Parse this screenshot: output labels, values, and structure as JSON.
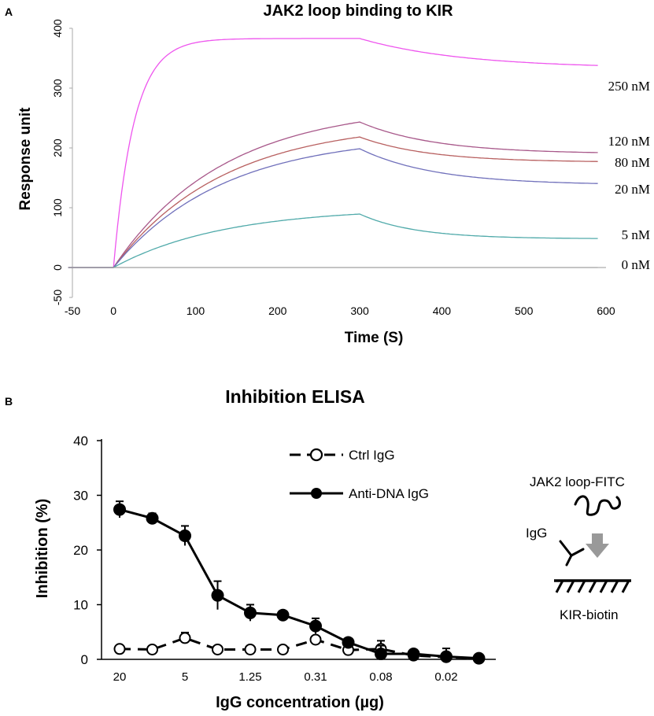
{
  "panel_a": {
    "letter": "A",
    "colors": {
      "250 nM": "#ee55ee",
      "120 nM": "#a8588a",
      "80 nM": "#b86060",
      "20 nM": "#7070bb",
      "5 nM": "#50aaaa",
      "0 nM": "#a0a0a0"
    }
  },
  "panel_b": {
    "letter": "B",
    "diagram": {
      "jak2": "JAK2 loop-FITC",
      "igg": "IgG",
      "kir": "KIR-biotin"
    }
  },
  "chart_data": [
    {
      "type": "line",
      "title": "JAK2 loop binding to KIR",
      "xlabel": "Time (S)",
      "ylabel": "Response unit",
      "xlim": [
        -50,
        600
      ],
      "ylim": [
        -50,
        400
      ],
      "xticks": [
        "-50",
        "0",
        "100",
        "200",
        "300",
        "400",
        "500",
        "600"
      ],
      "yticks": [
        "-50",
        "0",
        "100",
        "200",
        "300",
        "400"
      ],
      "association_end": 300,
      "series": [
        {
          "name": "250 nM",
          "plateau": 383,
          "end": 333,
          "koff": 0.008
        },
        {
          "name": "120 nM",
          "plateau": 272,
          "end": 190,
          "koff": 0.011
        },
        {
          "name": "80 nM",
          "plateau": 244,
          "end": 176,
          "koff": 0.012
        },
        {
          "name": "20 nM",
          "plateau": 222,
          "end": 138,
          "koff": 0.011
        },
        {
          "name": "5 nM",
          "plateau": 100,
          "end": 48,
          "koff": 0.015
        },
        {
          "name": "0 nM",
          "plateau": 0,
          "end": 0,
          "koff": 0.01
        }
      ]
    },
    {
      "type": "line",
      "title": "Inhibition ELISA",
      "xlabel": "IgG concentration (µg)",
      "ylabel": "Inhibition (%)",
      "ylim": [
        0,
        40
      ],
      "yticks": [
        "0",
        "10",
        "20",
        "30",
        "40"
      ],
      "categories": [
        "20",
        "10",
        "5",
        "2.5",
        "1.25",
        "0.63",
        "0.31",
        "0.16",
        "0.08",
        "0.04",
        "0.02",
        "0.01"
      ],
      "category_labels": [
        "20",
        "",
        "5",
        "",
        "1.25",
        "",
        "0.31",
        "",
        "0.08",
        "",
        "0.02",
        ""
      ],
      "series": [
        {
          "name": "Ctrl IgG",
          "style": "dashed-open",
          "values": [
            1.9,
            1.8,
            3.9,
            1.8,
            1.8,
            1.8,
            3.6,
            1.7,
            1.9,
            0.7,
            0.4,
            0.2
          ],
          "errors": [
            0.3,
            0.3,
            1.0,
            0.3,
            0.3,
            0.3,
            0.6,
            0.3,
            1.5,
            0.5,
            0.4,
            0.2
          ]
        },
        {
          "name": "Anti-DNA IgG",
          "style": "solid-filled",
          "values": [
            27.4,
            25.8,
            22.6,
            11.7,
            8.5,
            8.1,
            6.1,
            3.1,
            1.0,
            1.0,
            0.5,
            0.2
          ],
          "errors": [
            1.5,
            0.9,
            1.8,
            2.6,
            1.5,
            0.6,
            1.4,
            0.5,
            1.5,
            0.8,
            1.5,
            0.3
          ]
        }
      ]
    }
  ]
}
